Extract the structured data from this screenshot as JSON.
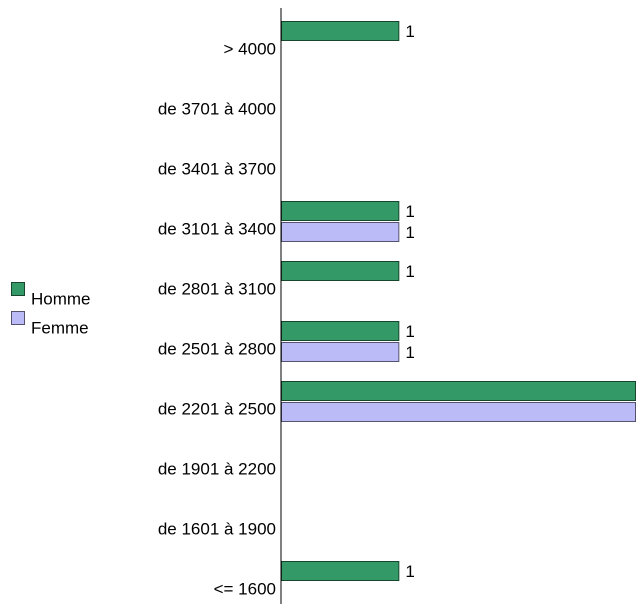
{
  "chart_data": {
    "type": "bar",
    "orientation": "horizontal",
    "categories": [
      "> 4000",
      "de 3701 à 4000",
      "de 3401 à 3700",
      "de 3101 à 3400",
      "de 2801 à 3100",
      "de 2501 à 2800",
      "de 2201 à 2500",
      "de 1901 à 2200",
      "de 1601 à 1900",
      "<= 1600"
    ],
    "series": [
      {
        "name": "Homme",
        "color": "#339966",
        "values": [
          1,
          0,
          0,
          1,
          1,
          1,
          3,
          0,
          0,
          1
        ]
      },
      {
        "name": "Femme",
        "color": "#bbbbf7",
        "values": [
          0,
          0,
          0,
          1,
          0,
          1,
          3,
          0,
          0,
          0
        ]
      }
    ],
    "xlim": [
      0,
      3
    ],
    "grid": false,
    "data_labels": true,
    "legend_position": "left"
  }
}
